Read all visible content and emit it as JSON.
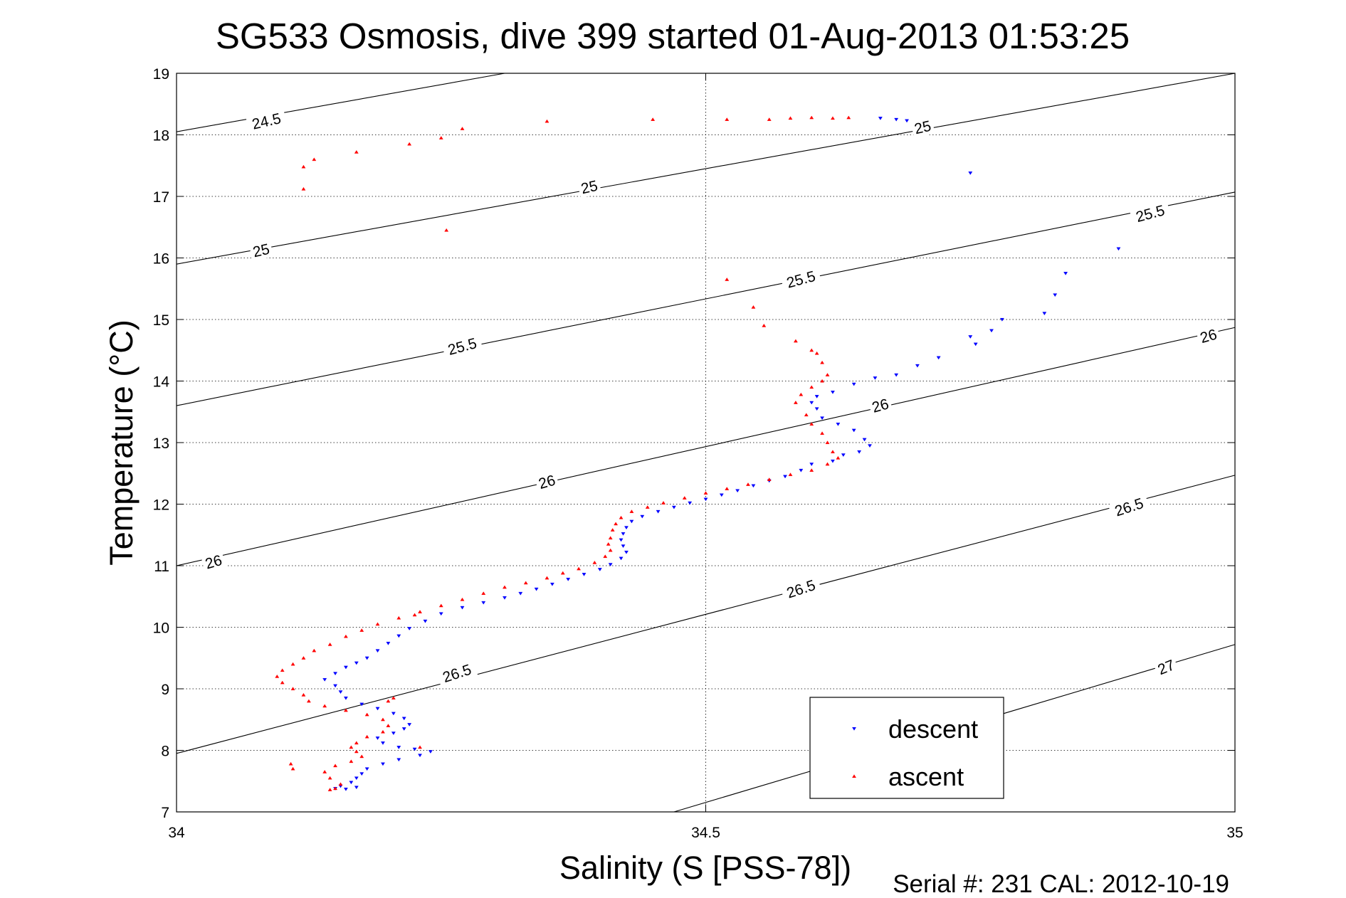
{
  "chart_data": {
    "type": "scatter",
    "title": "SG533 Osmosis, dive 399 started 01-Aug-2013 01:53:25",
    "xlabel": "Salinity (S [PSS-78])",
    "ylabel": "Temperature (°C)",
    "footer": "Serial #: 231  CAL: 2012-10-19",
    "xlim": [
      34,
      35
    ],
    "ylim": [
      7,
      19
    ],
    "x_ticks": [
      "34",
      "34.5",
      "35"
    ],
    "y_ticks": [
      "7",
      "8",
      "9",
      "10",
      "11",
      "12",
      "13",
      "14",
      "15",
      "16",
      "17",
      "18",
      "19"
    ],
    "grid": true,
    "legend_position": "bottom-right",
    "legend_labels": [
      "descent",
      "ascent"
    ],
    "density_contours": [
      {
        "level": 24.5,
        "label": "24.5",
        "points": [
          [
            34,
            18.05
          ],
          [
            34.31,
            19
          ]
        ]
      },
      {
        "level": 25,
        "label": "25",
        "points": [
          [
            34,
            15.9
          ],
          [
            35,
            19
          ]
        ]
      },
      {
        "level": 25.5,
        "label": "25.5",
        "points": [
          [
            34,
            13.6
          ],
          [
            35,
            17.07
          ]
        ]
      },
      {
        "level": 26,
        "label": "26",
        "points": [
          [
            34,
            11.0
          ],
          [
            35,
            14.87
          ]
        ]
      },
      {
        "level": 26.5,
        "label": "26.5",
        "points": [
          [
            34,
            7.95
          ],
          [
            35,
            12.47
          ]
        ]
      },
      {
        "level": 27,
        "label": "27",
        "points": [
          [
            34.47,
            7
          ],
          [
            35,
            9.72
          ]
        ]
      }
    ],
    "contour_labels": [
      {
        "text": "24.5",
        "x": 34.085,
        "y": 18.22,
        "angle": -13
      },
      {
        "text": "25",
        "x": 34.08,
        "y": 16.12,
        "angle": -13
      },
      {
        "text": "25",
        "x": 34.39,
        "y": 17.15,
        "angle": -13
      },
      {
        "text": "25",
        "x": 34.705,
        "y": 18.12,
        "angle": -13
      },
      {
        "text": "25.5",
        "x": 34.27,
        "y": 14.56,
        "angle": -15
      },
      {
        "text": "25.5",
        "x": 34.59,
        "y": 15.65,
        "angle": -15
      },
      {
        "text": "25.5",
        "x": 34.92,
        "y": 16.72,
        "angle": -15
      },
      {
        "text": "26",
        "x": 34.035,
        "y": 11.06,
        "angle": -16
      },
      {
        "text": "26",
        "x": 34.35,
        "y": 12.36,
        "angle": -16
      },
      {
        "text": "26",
        "x": 34.665,
        "y": 13.6,
        "angle": -16
      },
      {
        "text": "26",
        "x": 34.975,
        "y": 14.73,
        "angle": -16
      },
      {
        "text": "26.5",
        "x": 34.265,
        "y": 9.25,
        "angle": -18
      },
      {
        "text": "26.5",
        "x": 34.59,
        "y": 10.62,
        "angle": -18
      },
      {
        "text": "26.5",
        "x": 34.9,
        "y": 11.95,
        "angle": -18
      },
      {
        "text": "27",
        "x": 34.935,
        "y": 9.35,
        "angle": -22
      }
    ],
    "series": [
      {
        "name": "descent",
        "color": "#0000ff",
        "marker": "triangle-down",
        "points": [
          [
            34.68,
            18.25
          ],
          [
            34.665,
            18.27
          ],
          [
            34.69,
            18.23
          ],
          [
            34.75,
            17.38
          ],
          [
            34.89,
            16.15
          ],
          [
            34.84,
            15.75
          ],
          [
            34.83,
            15.4
          ],
          [
            34.82,
            15.1
          ],
          [
            34.78,
            15.0
          ],
          [
            34.77,
            14.82
          ],
          [
            34.75,
            14.72
          ],
          [
            34.755,
            14.6
          ],
          [
            34.72,
            14.38
          ],
          [
            34.7,
            14.25
          ],
          [
            34.68,
            14.1
          ],
          [
            34.66,
            14.05
          ],
          [
            34.64,
            13.95
          ],
          [
            34.62,
            13.82
          ],
          [
            34.605,
            13.75
          ],
          [
            34.6,
            13.65
          ],
          [
            34.605,
            13.55
          ],
          [
            34.61,
            13.4
          ],
          [
            34.625,
            13.3
          ],
          [
            34.64,
            13.2
          ],
          [
            34.65,
            13.05
          ],
          [
            34.655,
            12.95
          ],
          [
            34.645,
            12.85
          ],
          [
            34.63,
            12.8
          ],
          [
            34.62,
            12.7
          ],
          [
            34.6,
            12.65
          ],
          [
            34.59,
            12.55
          ],
          [
            34.575,
            12.45
          ],
          [
            34.56,
            12.38
          ],
          [
            34.545,
            12.3
          ],
          [
            34.53,
            12.22
          ],
          [
            34.515,
            12.15
          ],
          [
            34.5,
            12.08
          ],
          [
            34.485,
            12.02
          ],
          [
            34.47,
            11.95
          ],
          [
            34.455,
            11.88
          ],
          [
            34.44,
            11.8
          ],
          [
            34.43,
            11.72
          ],
          [
            34.425,
            11.62
          ],
          [
            34.422,
            11.52
          ],
          [
            34.42,
            11.42
          ],
          [
            34.422,
            11.32
          ],
          [
            34.425,
            11.22
          ],
          [
            34.42,
            11.12
          ],
          [
            34.41,
            11.02
          ],
          [
            34.4,
            10.94
          ],
          [
            34.385,
            10.86
          ],
          [
            34.37,
            10.78
          ],
          [
            34.355,
            10.7
          ],
          [
            34.34,
            10.62
          ],
          [
            34.325,
            10.55
          ],
          [
            34.31,
            10.48
          ],
          [
            34.29,
            10.4
          ],
          [
            34.27,
            10.32
          ],
          [
            34.25,
            10.22
          ],
          [
            34.235,
            10.1
          ],
          [
            34.22,
            9.98
          ],
          [
            34.21,
            9.86
          ],
          [
            34.2,
            9.74
          ],
          [
            34.19,
            9.62
          ],
          [
            34.18,
            9.5
          ],
          [
            34.17,
            9.42
          ],
          [
            34.16,
            9.35
          ],
          [
            34.15,
            9.25
          ],
          [
            34.14,
            9.15
          ],
          [
            34.15,
            9.05
          ],
          [
            34.155,
            8.95
          ],
          [
            34.16,
            8.85
          ],
          [
            34.175,
            8.75
          ],
          [
            34.19,
            8.68
          ],
          [
            34.205,
            8.6
          ],
          [
            34.215,
            8.52
          ],
          [
            34.22,
            8.42
          ],
          [
            34.215,
            8.35
          ],
          [
            34.205,
            8.28
          ],
          [
            34.19,
            8.2
          ],
          [
            34.195,
            8.12
          ],
          [
            34.21,
            8.05
          ],
          [
            34.225,
            8.02
          ],
          [
            34.24,
            7.98
          ],
          [
            34.23,
            7.92
          ],
          [
            34.21,
            7.85
          ],
          [
            34.195,
            7.78
          ],
          [
            34.18,
            7.7
          ],
          [
            34.175,
            7.62
          ],
          [
            34.17,
            7.55
          ],
          [
            34.165,
            7.48
          ],
          [
            34.155,
            7.42
          ],
          [
            34.15,
            7.38
          ],
          [
            34.16,
            7.37
          ],
          [
            34.17,
            7.4
          ]
        ]
      },
      {
        "name": "ascent",
        "color": "#ff0000",
        "marker": "triangle-up",
        "points": [
          [
            34.635,
            18.28
          ],
          [
            34.62,
            18.27
          ],
          [
            34.6,
            18.28
          ],
          [
            34.58,
            18.27
          ],
          [
            34.56,
            18.25
          ],
          [
            34.52,
            18.25
          ],
          [
            34.45,
            18.25
          ],
          [
            34.35,
            18.22
          ],
          [
            34.27,
            18.1
          ],
          [
            34.25,
            17.95
          ],
          [
            34.22,
            17.85
          ],
          [
            34.17,
            17.72
          ],
          [
            34.13,
            17.6
          ],
          [
            34.12,
            17.48
          ],
          [
            34.12,
            17.12
          ],
          [
            34.255,
            16.45
          ],
          [
            34.52,
            15.65
          ],
          [
            34.545,
            15.2
          ],
          [
            34.555,
            14.9
          ],
          [
            34.585,
            14.65
          ],
          [
            34.6,
            14.5
          ],
          [
            34.605,
            14.45
          ],
          [
            34.61,
            14.3
          ],
          [
            34.615,
            14.1
          ],
          [
            34.61,
            14.0
          ],
          [
            34.6,
            13.9
          ],
          [
            34.59,
            13.78
          ],
          [
            34.585,
            13.65
          ],
          [
            34.595,
            13.45
          ],
          [
            34.6,
            13.3
          ],
          [
            34.61,
            13.15
          ],
          [
            34.615,
            13.0
          ],
          [
            34.62,
            12.85
          ],
          [
            34.625,
            12.75
          ],
          [
            34.615,
            12.65
          ],
          [
            34.6,
            12.55
          ],
          [
            34.58,
            12.48
          ],
          [
            34.56,
            12.4
          ],
          [
            34.54,
            12.32
          ],
          [
            34.52,
            12.25
          ],
          [
            34.5,
            12.18
          ],
          [
            34.48,
            12.1
          ],
          [
            34.46,
            12.02
          ],
          [
            34.445,
            11.95
          ],
          [
            34.43,
            11.88
          ],
          [
            34.42,
            11.78
          ],
          [
            34.415,
            11.68
          ],
          [
            34.412,
            11.58
          ],
          [
            34.41,
            11.45
          ],
          [
            34.408,
            11.35
          ],
          [
            34.41,
            11.25
          ],
          [
            34.405,
            11.15
          ],
          [
            34.395,
            11.05
          ],
          [
            34.38,
            10.95
          ],
          [
            34.365,
            10.88
          ],
          [
            34.35,
            10.8
          ],
          [
            34.33,
            10.72
          ],
          [
            34.31,
            10.65
          ],
          [
            34.29,
            10.55
          ],
          [
            34.27,
            10.45
          ],
          [
            34.25,
            10.35
          ],
          [
            34.23,
            10.25
          ],
          [
            34.21,
            10.15
          ],
          [
            34.19,
            10.05
          ],
          [
            34.175,
            9.95
          ],
          [
            34.16,
            9.85
          ],
          [
            34.145,
            9.72
          ],
          [
            34.13,
            9.62
          ],
          [
            34.12,
            9.5
          ],
          [
            34.11,
            9.4
          ],
          [
            34.1,
            9.3
          ],
          [
            34.095,
            9.2
          ],
          [
            34.1,
            9.1
          ],
          [
            34.11,
            9.0
          ],
          [
            34.12,
            8.9
          ],
          [
            34.125,
            8.8
          ],
          [
            34.14,
            8.72
          ],
          [
            34.16,
            8.65
          ],
          [
            34.18,
            8.58
          ],
          [
            34.195,
            8.5
          ],
          [
            34.2,
            8.4
          ],
          [
            34.195,
            8.3
          ],
          [
            34.18,
            8.22
          ],
          [
            34.17,
            8.12
          ],
          [
            34.165,
            8.05
          ],
          [
            34.17,
            7.98
          ],
          [
            34.175,
            7.9
          ],
          [
            34.165,
            7.82
          ],
          [
            34.15,
            7.75
          ],
          [
            34.14,
            7.65
          ],
          [
            34.145,
            7.55
          ],
          [
            34.155,
            7.45
          ],
          [
            34.15,
            7.38
          ],
          [
            34.145,
            7.36
          ],
          [
            34.108,
            7.78
          ],
          [
            34.11,
            7.7
          ],
          [
            34.23,
            8.05
          ],
          [
            34.205,
            8.85
          ],
          [
            34.2,
            8.8
          ],
          [
            34.225,
            10.2
          ]
        ]
      }
    ]
  }
}
